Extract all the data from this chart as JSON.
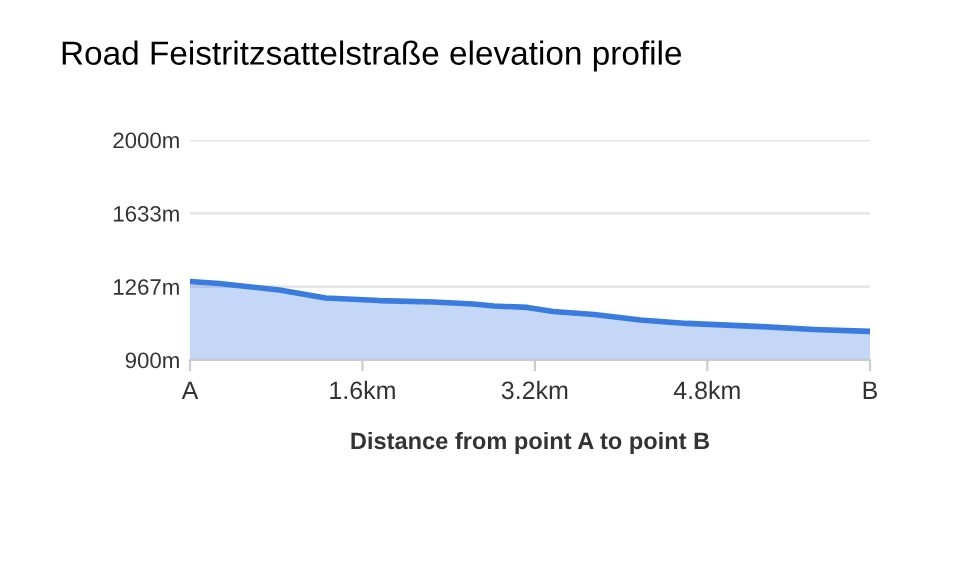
{
  "chart_data": {
    "type": "area",
    "title": "Road Feistritzsattelstraße elevation profile",
    "xlabel": "Distance from point A to point B",
    "x": [
      0,
      0.27,
      0.83,
      1.26,
      1.76,
      2.26,
      2.63,
      2.82,
      3.13,
      3.37,
      3.75,
      4.18,
      4.61,
      5.3,
      5.79,
      6.31
    ],
    "series": [
      {
        "color": "#3a7be0",
        "values": [
          1293,
          1283,
          1250,
          1210,
          1197,
          1190,
          1180,
          1170,
          1163,
          1143,
          1127,
          1100,
          1083,
          1067,
          1053,
          1043
        ]
      }
    ],
    "xlim": [
      0,
      6.31
    ],
    "xticks": [
      {
        "value": 0,
        "label": "A"
      },
      {
        "value": 1.6,
        "label": "1.6km"
      },
      {
        "value": 3.2,
        "label": "3.2km"
      },
      {
        "value": 4.8,
        "label": "4.8km"
      },
      {
        "value": 6.31,
        "label": "B"
      }
    ],
    "ylim": [
      900,
      2000
    ],
    "yticks": [
      {
        "value": 900,
        "label": "900m"
      },
      {
        "value": 1267,
        "label": "1267m"
      },
      {
        "value": 1633,
        "label": "1633m"
      },
      {
        "value": 2000,
        "label": "2000m"
      }
    ],
    "grid": "y",
    "marker": "none",
    "line_style": "solid"
  }
}
